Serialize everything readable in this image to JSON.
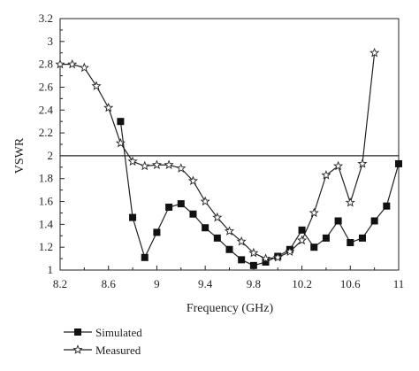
{
  "chart_data": {
    "type": "line",
    "xlabel": "Frequency (GHz)",
    "ylabel": "VSWR",
    "xlim": [
      8.2,
      11
    ],
    "ylim": [
      1,
      3.2
    ],
    "xticks": [
      "8.2",
      "8.6",
      "9",
      "9.4",
      "9.8",
      "10.2",
      "10.6",
      "11"
    ],
    "yticks": [
      "1",
      "1.2",
      "1.4",
      "1.6",
      "1.8",
      "2",
      "2.2",
      "2.4",
      "2.6",
      "2.8",
      "3",
      "3.2"
    ],
    "reference_line": {
      "y": 2
    },
    "legend_position": "bottom-left",
    "grid": false,
    "series": [
      {
        "name": "Simulated",
        "marker": "square",
        "x": [
          8.7,
          8.8,
          8.9,
          9.0,
          9.1,
          9.2,
          9.3,
          9.4,
          9.5,
          9.6,
          9.7,
          9.8,
          9.9,
          10.0,
          10.1,
          10.2,
          10.3,
          10.4,
          10.5,
          10.6,
          10.7,
          10.8,
          10.9,
          11.0
        ],
        "values": [
          2.3,
          1.46,
          1.11,
          1.33,
          1.55,
          1.58,
          1.49,
          1.37,
          1.28,
          1.18,
          1.09,
          1.04,
          1.07,
          1.12,
          1.18,
          1.35,
          1.2,
          1.28,
          1.43,
          1.24,
          1.28,
          1.43,
          1.56,
          1.93
        ]
      },
      {
        "name": "Measured",
        "marker": "star",
        "x": [
          8.2,
          8.3,
          8.4,
          8.5,
          8.6,
          8.7,
          8.8,
          8.9,
          9.0,
          9.1,
          9.2,
          9.3,
          9.4,
          9.5,
          9.6,
          9.7,
          9.8,
          9.9,
          10.0,
          10.1,
          10.2,
          10.3,
          10.4,
          10.5,
          10.6,
          10.7,
          10.8
        ],
        "values": [
          2.8,
          2.8,
          2.77,
          2.61,
          2.42,
          2.11,
          1.95,
          1.91,
          1.92,
          1.92,
          1.89,
          1.78,
          1.6,
          1.46,
          1.34,
          1.25,
          1.15,
          1.1,
          1.11,
          1.16,
          1.26,
          1.5,
          1.83,
          1.91,
          1.59,
          1.93,
          2.9
        ]
      }
    ]
  }
}
